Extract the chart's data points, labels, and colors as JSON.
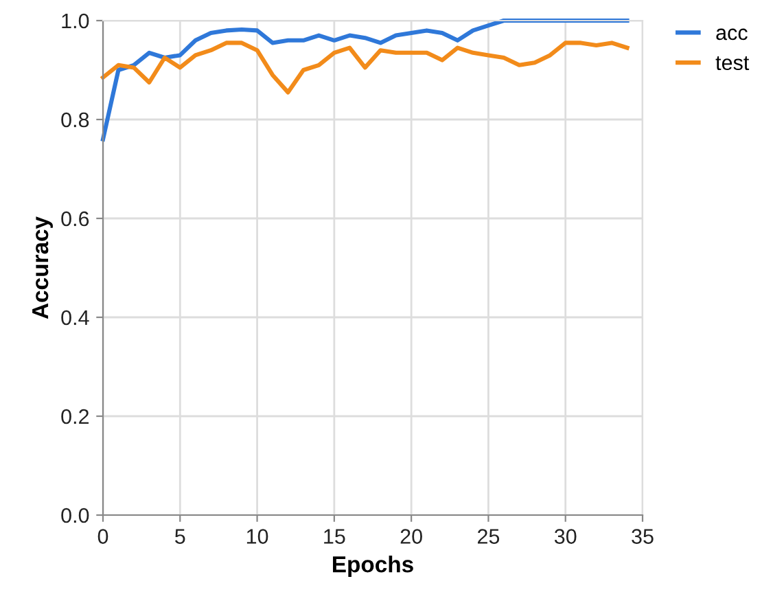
{
  "chart_data": {
    "type": "line",
    "xlabel": "Epochs",
    "ylabel": "Accuracy",
    "x": [
      0,
      1,
      2,
      3,
      4,
      5,
      6,
      7,
      8,
      9,
      10,
      11,
      12,
      13,
      14,
      15,
      16,
      17,
      18,
      19,
      20,
      21,
      22,
      23,
      24,
      25,
      26,
      27,
      28,
      29,
      30,
      31,
      32,
      33,
      34
    ],
    "series": [
      {
        "name": "acc",
        "color": "#2f78d9",
        "values": [
          0.76,
          0.9,
          0.91,
          0.935,
          0.925,
          0.93,
          0.96,
          0.975,
          0.98,
          0.982,
          0.98,
          0.955,
          0.96,
          0.96,
          0.97,
          0.96,
          0.97,
          0.965,
          0.955,
          0.97,
          0.975,
          0.98,
          0.975,
          0.96,
          0.98,
          0.99,
          1.0,
          1.0,
          1.0,
          1.0,
          1.0,
          1.0,
          1.0,
          1.0,
          1.0
        ]
      },
      {
        "name": "test",
        "color": "#f28b1a",
        "values": [
          0.885,
          0.91,
          0.905,
          0.875,
          0.925,
          0.905,
          0.93,
          0.94,
          0.955,
          0.955,
          0.94,
          0.89,
          0.855,
          0.9,
          0.91,
          0.935,
          0.945,
          0.905,
          0.94,
          0.935,
          0.935,
          0.935,
          0.92,
          0.945,
          0.935,
          0.93,
          0.925,
          0.91,
          0.915,
          0.93,
          0.955,
          0.955,
          0.95,
          0.955,
          0.945
        ]
      }
    ],
    "xlim": [
      0,
      35
    ],
    "ylim": [
      0,
      1
    ],
    "xticks": [
      0,
      5,
      10,
      15,
      20,
      25,
      30,
      35
    ],
    "yticks": [
      {
        "value": 0,
        "label": "0.0"
      },
      {
        "value": 0.2,
        "label": "0.2"
      },
      {
        "value": 0.4,
        "label": "0.4"
      },
      {
        "value": 0.6,
        "label": "0.6"
      },
      {
        "value": 0.8,
        "label": "0.8"
      },
      {
        "value": 1,
        "label": "1.0"
      }
    ],
    "grid": true,
    "legend": "right",
    "marker": "none",
    "line_style": "solid"
  }
}
